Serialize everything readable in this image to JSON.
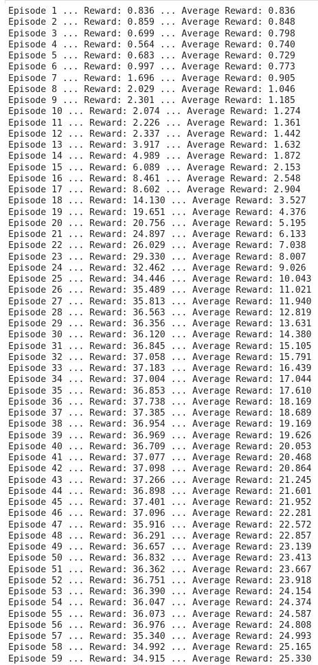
{
  "log": {
    "episode_label": "Episode",
    "reward_label": "Reward:",
    "average_label": "Average Reward:",
    "separator": "...",
    "lines": [
      {
        "episode": "1",
        "reward": "0.836",
        "average": "0.836"
      },
      {
        "episode": "2",
        "reward": "0.859",
        "average": "0.848"
      },
      {
        "episode": "3",
        "reward": "0.699",
        "average": "0.798"
      },
      {
        "episode": "4",
        "reward": "0.564",
        "average": "0.740"
      },
      {
        "episode": "5",
        "reward": "0.683",
        "average": "0.729"
      },
      {
        "episode": "6",
        "reward": "0.997",
        "average": "0.773"
      },
      {
        "episode": "7",
        "reward": "1.696",
        "average": "0.905"
      },
      {
        "episode": "8",
        "reward": "2.029",
        "average": "1.046"
      },
      {
        "episode": "9",
        "reward": "2.301",
        "average": "1.185"
      },
      {
        "episode": "10",
        "reward": "2.074",
        "average": "1.274"
      },
      {
        "episode": "11",
        "reward": "2.226",
        "average": "1.361"
      },
      {
        "episode": "12",
        "reward": "2.337",
        "average": "1.442"
      },
      {
        "episode": "13",
        "reward": "3.917",
        "average": "1.632"
      },
      {
        "episode": "14",
        "reward": "4.989",
        "average": "1.872"
      },
      {
        "episode": "15",
        "reward": "6.089",
        "average": "2.153"
      },
      {
        "episode": "16",
        "reward": "8.461",
        "average": "2.548"
      },
      {
        "episode": "17",
        "reward": "8.602",
        "average": "2.904"
      },
      {
        "episode": "18",
        "reward": "14.130",
        "average": "3.527"
      },
      {
        "episode": "19",
        "reward": "19.651",
        "average": "4.376"
      },
      {
        "episode": "20",
        "reward": "20.756",
        "average": "5.195"
      },
      {
        "episode": "21",
        "reward": "24.897",
        "average": "6.133"
      },
      {
        "episode": "22",
        "reward": "26.029",
        "average": "7.038"
      },
      {
        "episode": "23",
        "reward": "29.330",
        "average": "8.007"
      },
      {
        "episode": "24",
        "reward": "32.462",
        "average": "9.026"
      },
      {
        "episode": "25",
        "reward": "34.446",
        "average": "10.043"
      },
      {
        "episode": "26",
        "reward": "35.489",
        "average": "11.021"
      },
      {
        "episode": "27",
        "reward": "35.813",
        "average": "11.940"
      },
      {
        "episode": "28",
        "reward": "36.563",
        "average": "12.819"
      },
      {
        "episode": "29",
        "reward": "36.356",
        "average": "13.631"
      },
      {
        "episode": "30",
        "reward": "36.120",
        "average": "14.380"
      },
      {
        "episode": "31",
        "reward": "36.845",
        "average": "15.105"
      },
      {
        "episode": "32",
        "reward": "37.058",
        "average": "15.791"
      },
      {
        "episode": "33",
        "reward": "37.183",
        "average": "16.439"
      },
      {
        "episode": "34",
        "reward": "37.004",
        "average": "17.044"
      },
      {
        "episode": "35",
        "reward": "36.853",
        "average": "17.610"
      },
      {
        "episode": "36",
        "reward": "37.738",
        "average": "18.169"
      },
      {
        "episode": "37",
        "reward": "37.385",
        "average": "18.689"
      },
      {
        "episode": "38",
        "reward": "36.954",
        "average": "19.169"
      },
      {
        "episode": "39",
        "reward": "36.969",
        "average": "19.626"
      },
      {
        "episode": "40",
        "reward": "36.709",
        "average": "20.053"
      },
      {
        "episode": "41",
        "reward": "37.077",
        "average": "20.468"
      },
      {
        "episode": "42",
        "reward": "37.098",
        "average": "20.864"
      },
      {
        "episode": "43",
        "reward": "37.266",
        "average": "21.245"
      },
      {
        "episode": "44",
        "reward": "36.898",
        "average": "21.601"
      },
      {
        "episode": "45",
        "reward": "37.401",
        "average": "21.952"
      },
      {
        "episode": "46",
        "reward": "37.096",
        "average": "22.281"
      },
      {
        "episode": "47",
        "reward": "35.916",
        "average": "22.572"
      },
      {
        "episode": "48",
        "reward": "36.291",
        "average": "22.857"
      },
      {
        "episode": "49",
        "reward": "36.657",
        "average": "23.139"
      },
      {
        "episode": "50",
        "reward": "36.832",
        "average": "23.413"
      },
      {
        "episode": "51",
        "reward": "36.362",
        "average": "23.667"
      },
      {
        "episode": "52",
        "reward": "36.751",
        "average": "23.918"
      },
      {
        "episode": "53",
        "reward": "36.390",
        "average": "24.154"
      },
      {
        "episode": "54",
        "reward": "36.047",
        "average": "24.374"
      },
      {
        "episode": "55",
        "reward": "36.073",
        "average": "24.587"
      },
      {
        "episode": "56",
        "reward": "36.976",
        "average": "24.808"
      },
      {
        "episode": "57",
        "reward": "35.340",
        "average": "24.993"
      },
      {
        "episode": "58",
        "reward": "34.992",
        "average": "25.165"
      },
      {
        "episode": "59",
        "reward": "34.915",
        "average": "25.330"
      }
    ]
  }
}
